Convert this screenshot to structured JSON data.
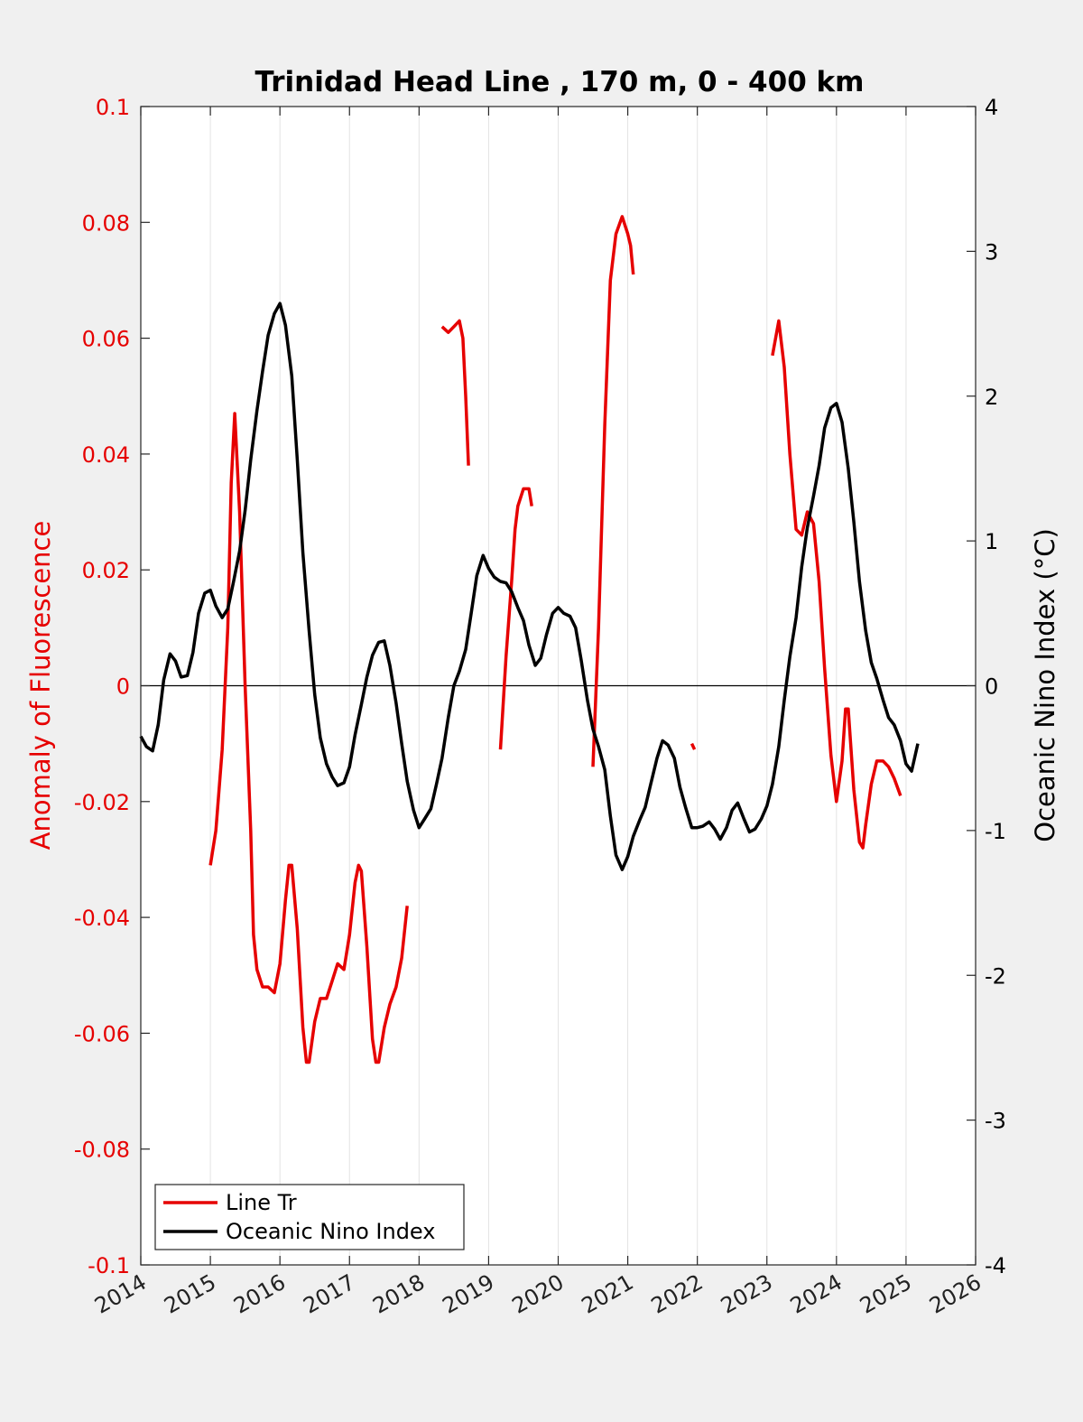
{
  "chart_data": {
    "type": "line",
    "title": "Trinidad Head Line , 170 m, 0 - 400 km",
    "ylabel_left": "Anomaly of Fluorescence",
    "ylabel_right": "Oceanic Nino Index (°C)",
    "xlim": [
      2014,
      2026
    ],
    "ylim_left": [
      -0.1,
      0.1
    ],
    "ylim_right": [
      -4,
      4
    ],
    "x_ticks": [
      "2014",
      "2015",
      "2016",
      "2017",
      "2018",
      "2019",
      "2020",
      "2021",
      "2022",
      "2023",
      "2024",
      "2025",
      "2026"
    ],
    "y_left_ticks": [
      "0.1",
      "0.08",
      "0.06",
      "0.04",
      "0.02",
      "0",
      "-0.02",
      "-0.04",
      "-0.06",
      "-0.08",
      "-0.1"
    ],
    "y_right_ticks": [
      "4",
      "3",
      "2",
      "1",
      "0",
      "-1",
      "-2",
      "-3",
      "-4"
    ],
    "grid": "vertical",
    "legend_position": "bottom-left",
    "colors": {
      "line_tr": "#e60000",
      "oni": "#000000",
      "zero_line": "#000000"
    },
    "series": [
      {
        "name": "Line Tr",
        "axis": "left",
        "segments": [
          [
            [
              2015.0,
              -0.031
            ],
            [
              2015.08,
              -0.025
            ],
            [
              2015.17,
              -0.011
            ],
            [
              2015.25,
              0.01
            ],
            [
              2015.3,
              0.035
            ],
            [
              2015.35,
              0.047
            ],
            [
              2015.42,
              0.03
            ],
            [
              2015.5,
              0.0
            ],
            [
              2015.58,
              -0.025
            ],
            [
              2015.62,
              -0.043
            ],
            [
              2015.67,
              -0.049
            ],
            [
              2015.75,
              -0.052
            ],
            [
              2015.83,
              -0.052
            ],
            [
              2015.92,
              -0.053
            ],
            [
              2016.0,
              -0.048
            ],
            [
              2016.08,
              -0.037
            ],
            [
              2016.13,
              -0.031
            ],
            [
              2016.17,
              -0.031
            ],
            [
              2016.25,
              -0.042
            ],
            [
              2016.33,
              -0.059
            ],
            [
              2016.38,
              -0.065
            ],
            [
              2016.42,
              -0.065
            ],
            [
              2016.5,
              -0.058
            ],
            [
              2016.58,
              -0.054
            ],
            [
              2016.67,
              -0.054
            ],
            [
              2016.75,
              -0.051
            ],
            [
              2016.83,
              -0.048
            ],
            [
              2016.92,
              -0.049
            ],
            [
              2017.0,
              -0.043
            ],
            [
              2017.08,
              -0.034
            ],
            [
              2017.13,
              -0.031
            ],
            [
              2017.17,
              -0.032
            ],
            [
              2017.25,
              -0.045
            ],
            [
              2017.33,
              -0.061
            ],
            [
              2017.38,
              -0.065
            ],
            [
              2017.42,
              -0.065
            ],
            [
              2017.5,
              -0.059
            ],
            [
              2017.58,
              -0.055
            ],
            [
              2017.67,
              -0.052
            ],
            [
              2017.75,
              -0.047
            ],
            [
              2017.83,
              -0.038
            ]
          ],
          [
            [
              2018.33,
              0.062
            ],
            [
              2018.42,
              0.061
            ],
            [
              2018.5,
              0.062
            ],
            [
              2018.58,
              0.063
            ],
            [
              2018.63,
              0.06
            ],
            [
              2018.67,
              0.05
            ],
            [
              2018.71,
              0.038
            ]
          ],
          [
            [
              2019.17,
              -0.011
            ],
            [
              2019.25,
              0.005
            ],
            [
              2019.33,
              0.018
            ],
            [
              2019.38,
              0.027
            ],
            [
              2019.42,
              0.031
            ],
            [
              2019.5,
              0.034
            ],
            [
              2019.58,
              0.034
            ],
            [
              2019.62,
              0.031
            ]
          ],
          [
            [
              2020.5,
              -0.014
            ],
            [
              2020.58,
              0.01
            ],
            [
              2020.67,
              0.045
            ],
            [
              2020.75,
              0.07
            ],
            [
              2020.83,
              0.078
            ],
            [
              2020.92,
              0.081
            ],
            [
              2021.0,
              0.078
            ],
            [
              2021.04,
              0.076
            ],
            [
              2021.08,
              0.071
            ]
          ],
          [
            [
              2021.92,
              -0.01
            ],
            [
              2021.96,
              -0.011
            ]
          ],
          [
            [
              2023.08,
              0.057
            ],
            [
              2023.17,
              0.063
            ],
            [
              2023.25,
              0.055
            ],
            [
              2023.33,
              0.04
            ],
            [
              2023.42,
              0.027
            ],
            [
              2023.5,
              0.026
            ],
            [
              2023.58,
              0.03
            ],
            [
              2023.67,
              0.028
            ],
            [
              2023.75,
              0.018
            ],
            [
              2023.83,
              0.003
            ],
            [
              2023.92,
              -0.012
            ],
            [
              2024.0,
              -0.02
            ],
            [
              2024.08,
              -0.013
            ],
            [
              2024.13,
              -0.004
            ],
            [
              2024.17,
              -0.004
            ],
            [
              2024.25,
              -0.018
            ],
            [
              2024.33,
              -0.027
            ],
            [
              2024.38,
              -0.028
            ],
            [
              2024.42,
              -0.024
            ],
            [
              2024.5,
              -0.017
            ],
            [
              2024.58,
              -0.013
            ],
            [
              2024.67,
              -0.013
            ],
            [
              2024.75,
              -0.014
            ],
            [
              2024.83,
              -0.016
            ],
            [
              2024.92,
              -0.019
            ]
          ]
        ]
      },
      {
        "name": "Oceanic Nino Index",
        "axis": "right",
        "segments": [
          [
            [
              2014.0,
              -0.35
            ],
            [
              2014.08,
              -0.42
            ],
            [
              2014.17,
              -0.45
            ],
            [
              2014.25,
              -0.27
            ],
            [
              2014.33,
              0.04
            ],
            [
              2014.42,
              0.22
            ],
            [
              2014.5,
              0.17
            ],
            [
              2014.58,
              0.06
            ],
            [
              2014.67,
              0.07
            ],
            [
              2014.75,
              0.23
            ],
            [
              2014.83,
              0.5
            ],
            [
              2014.92,
              0.64
            ],
            [
              2015.0,
              0.66
            ],
            [
              2015.08,
              0.55
            ],
            [
              2015.17,
              0.47
            ],
            [
              2015.25,
              0.53
            ],
            [
              2015.33,
              0.71
            ],
            [
              2015.42,
              0.93
            ],
            [
              2015.5,
              1.21
            ],
            [
              2015.58,
              1.56
            ],
            [
              2015.67,
              1.9
            ],
            [
              2015.75,
              2.17
            ],
            [
              2015.83,
              2.42
            ],
            [
              2015.92,
              2.57
            ],
            [
              2016.0,
              2.64
            ],
            [
              2016.08,
              2.49
            ],
            [
              2016.17,
              2.14
            ],
            [
              2016.25,
              1.56
            ],
            [
              2016.33,
              0.92
            ],
            [
              2016.42,
              0.38
            ],
            [
              2016.5,
              -0.06
            ],
            [
              2016.58,
              -0.36
            ],
            [
              2016.67,
              -0.54
            ],
            [
              2016.75,
              -0.63
            ],
            [
              2016.83,
              -0.69
            ],
            [
              2016.92,
              -0.67
            ],
            [
              2017.0,
              -0.56
            ],
            [
              2017.08,
              -0.34
            ],
            [
              2017.17,
              -0.13
            ],
            [
              2017.25,
              0.06
            ],
            [
              2017.33,
              0.21
            ],
            [
              2017.42,
              0.3
            ],
            [
              2017.5,
              0.31
            ],
            [
              2017.58,
              0.14
            ],
            [
              2017.67,
              -0.12
            ],
            [
              2017.75,
              -0.4
            ],
            [
              2017.83,
              -0.66
            ],
            [
              2017.92,
              -0.86
            ],
            [
              2018.0,
              -0.98
            ],
            [
              2018.08,
              -0.92
            ],
            [
              2018.17,
              -0.85
            ],
            [
              2018.25,
              -0.68
            ],
            [
              2018.33,
              -0.5
            ],
            [
              2018.42,
              -0.22
            ],
            [
              2018.5,
              0.0
            ],
            [
              2018.58,
              0.1
            ],
            [
              2018.67,
              0.25
            ],
            [
              2018.75,
              0.5
            ],
            [
              2018.83,
              0.76
            ],
            [
              2018.92,
              0.9
            ],
            [
              2019.0,
              0.81
            ],
            [
              2019.08,
              0.75
            ],
            [
              2019.17,
              0.72
            ],
            [
              2019.25,
              0.71
            ],
            [
              2019.33,
              0.65
            ],
            [
              2019.42,
              0.54
            ],
            [
              2019.5,
              0.45
            ],
            [
              2019.58,
              0.28
            ],
            [
              2019.67,
              0.14
            ],
            [
              2019.75,
              0.19
            ],
            [
              2019.83,
              0.35
            ],
            [
              2019.92,
              0.5
            ],
            [
              2020.0,
              0.54
            ],
            [
              2020.08,
              0.5
            ],
            [
              2020.17,
              0.48
            ],
            [
              2020.25,
              0.4
            ],
            [
              2020.33,
              0.18
            ],
            [
              2020.42,
              -0.1
            ],
            [
              2020.5,
              -0.3
            ],
            [
              2020.58,
              -0.42
            ],
            [
              2020.67,
              -0.58
            ],
            [
              2020.75,
              -0.9
            ],
            [
              2020.83,
              -1.17
            ],
            [
              2020.92,
              -1.27
            ],
            [
              2021.0,
              -1.18
            ],
            [
              2021.08,
              -1.04
            ],
            [
              2021.17,
              -0.93
            ],
            [
              2021.25,
              -0.84
            ],
            [
              2021.33,
              -0.68
            ],
            [
              2021.42,
              -0.5
            ],
            [
              2021.5,
              -0.38
            ],
            [
              2021.58,
              -0.41
            ],
            [
              2021.67,
              -0.5
            ],
            [
              2021.75,
              -0.7
            ],
            [
              2021.83,
              -0.84
            ],
            [
              2021.92,
              -0.98
            ],
            [
              2022.0,
              -0.98
            ],
            [
              2022.08,
              -0.97
            ],
            [
              2022.17,
              -0.94
            ],
            [
              2022.25,
              -0.99
            ],
            [
              2022.33,
              -1.06
            ],
            [
              2022.42,
              -0.98
            ],
            [
              2022.5,
              -0.86
            ],
            [
              2022.58,
              -0.81
            ],
            [
              2022.67,
              -0.92
            ],
            [
              2022.75,
              -1.01
            ],
            [
              2022.83,
              -0.99
            ],
            [
              2022.92,
              -0.92
            ],
            [
              2023.0,
              -0.83
            ],
            [
              2023.08,
              -0.68
            ],
            [
              2023.17,
              -0.42
            ],
            [
              2023.25,
              -0.1
            ],
            [
              2023.33,
              0.2
            ],
            [
              2023.42,
              0.47
            ],
            [
              2023.5,
              0.82
            ],
            [
              2023.58,
              1.09
            ],
            [
              2023.67,
              1.31
            ],
            [
              2023.75,
              1.52
            ],
            [
              2023.83,
              1.78
            ],
            [
              2023.92,
              1.92
            ],
            [
              2024.0,
              1.95
            ],
            [
              2024.08,
              1.82
            ],
            [
              2024.17,
              1.5
            ],
            [
              2024.25,
              1.13
            ],
            [
              2024.33,
              0.72
            ],
            [
              2024.42,
              0.38
            ],
            [
              2024.5,
              0.16
            ],
            [
              2024.58,
              0.05
            ],
            [
              2024.67,
              -0.1
            ],
            [
              2024.75,
              -0.22
            ],
            [
              2024.83,
              -0.27
            ],
            [
              2024.92,
              -0.38
            ],
            [
              2025.0,
              -0.54
            ],
            [
              2025.08,
              -0.59
            ],
            [
              2025.17,
              -0.4
            ]
          ]
        ]
      }
    ]
  }
}
